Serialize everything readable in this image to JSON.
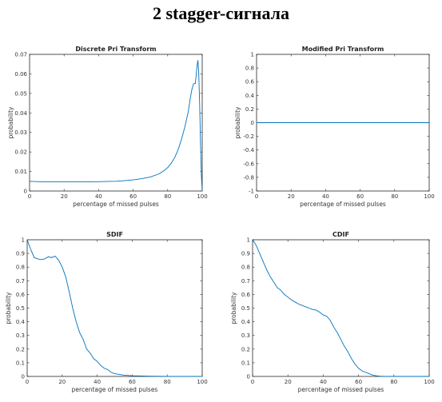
{
  "page": {
    "title": "2 stagger-сигнала"
  },
  "chart_data": [
    {
      "id": "dpt",
      "type": "line",
      "title": "Discrete Pri Transform",
      "xlabel": "percentage of missed pulses",
      "ylabel": "probability",
      "xlim": [
        0,
        100
      ],
      "ylim": [
        0,
        0.07
      ],
      "xticks": [
        0,
        20,
        40,
        60,
        80,
        100
      ],
      "yticks": [
        0,
        0.01,
        0.02,
        0.03,
        0.04,
        0.05,
        0.06,
        0.07
      ],
      "ytick_labels": [
        "0",
        "0.01",
        "0.02",
        "0.03",
        "0.04",
        "0.05",
        "0.06",
        "0.07"
      ],
      "grid": false,
      "color": "#0072bd",
      "x": [
        0,
        5,
        10,
        20,
        30,
        40,
        50,
        55,
        60,
        65,
        70,
        75,
        78,
        80,
        82,
        84,
        86,
        88,
        90,
        92,
        93,
        94,
        95,
        96,
        97,
        97.5,
        98,
        98.5,
        99,
        99.5,
        100
      ],
      "y": [
        0.005,
        0.0048,
        0.0047,
        0.0047,
        0.0047,
        0.0048,
        0.005,
        0.0053,
        0.0057,
        0.0063,
        0.0072,
        0.0088,
        0.0105,
        0.012,
        0.0142,
        0.017,
        0.021,
        0.0265,
        0.033,
        0.041,
        0.047,
        0.052,
        0.055,
        0.055,
        0.064,
        0.067,
        0.06,
        0.045,
        0.025,
        0.008,
        0.0
      ]
    },
    {
      "id": "mpt",
      "type": "line",
      "title": "Modified Pri Transform",
      "xlabel": "percentage of missed pulses",
      "ylabel": "probability",
      "xlim": [
        0,
        100
      ],
      "ylim": [
        -1,
        1
      ],
      "xticks": [
        0,
        20,
        40,
        60,
        80,
        100
      ],
      "yticks": [
        -1,
        -0.8,
        -0.6,
        -0.4,
        -0.2,
        0,
        0.2,
        0.4,
        0.6,
        0.8,
        1
      ],
      "ytick_labels": [
        "-1",
        "-0.8",
        "-0.6",
        "-0.4",
        "-0.2",
        "0",
        "0.2",
        "0.4",
        "0.6",
        "0.8",
        "1"
      ],
      "grid": false,
      "color": "#0072bd",
      "x": [
        0,
        100
      ],
      "y": [
        0,
        0
      ]
    },
    {
      "id": "sdif",
      "type": "line",
      "title": "SDIF",
      "xlabel": "percentage of missed pulses",
      "ylabel": "probability",
      "xlim": [
        0,
        100
      ],
      "ylim": [
        0,
        1
      ],
      "xticks": [
        0,
        20,
        40,
        60,
        80,
        100
      ],
      "yticks": [
        0,
        0.1,
        0.2,
        0.3,
        0.4,
        0.5,
        0.6,
        0.7,
        0.8,
        0.9,
        1
      ],
      "ytick_labels": [
        "0",
        "0.1",
        "0.2",
        "0.3",
        "0.4",
        "0.5",
        "0.6",
        "0.7",
        "0.8",
        "0.9",
        "1"
      ],
      "grid": false,
      "color": "#0072bd",
      "x": [
        0,
        2,
        4,
        6,
        8,
        10,
        12,
        14,
        16,
        18,
        20,
        22,
        24,
        26,
        28,
        30,
        32,
        34,
        36,
        38,
        40,
        42,
        44,
        46,
        48,
        50,
        55,
        60,
        70,
        80,
        100
      ],
      "y": [
        1.0,
        0.93,
        0.87,
        0.86,
        0.855,
        0.86,
        0.875,
        0.87,
        0.88,
        0.85,
        0.8,
        0.73,
        0.62,
        0.5,
        0.4,
        0.32,
        0.27,
        0.2,
        0.17,
        0.13,
        0.11,
        0.08,
        0.06,
        0.05,
        0.03,
        0.02,
        0.01,
        0.005,
        0.002,
        0.0,
        0.0
      ]
    },
    {
      "id": "cdif",
      "type": "line",
      "title": "CDIF",
      "xlabel": "percentage of missed pulses",
      "ylabel": "probability",
      "xlim": [
        0,
        100
      ],
      "ylim": [
        0,
        1
      ],
      "xticks": [
        0,
        20,
        40,
        60,
        80,
        100
      ],
      "yticks": [
        0,
        0.1,
        0.2,
        0.3,
        0.4,
        0.5,
        0.6,
        0.7,
        0.8,
        0.9,
        1
      ],
      "ytick_labels": [
        "0",
        "0.1",
        "0.2",
        "0.3",
        "0.4",
        "0.5",
        "0.6",
        "0.7",
        "0.8",
        "0.9",
        "1"
      ],
      "grid": false,
      "color": "#0072bd",
      "x": [
        0,
        2,
        4,
        6,
        8,
        10,
        12,
        14,
        16,
        18,
        20,
        22,
        24,
        26,
        28,
        30,
        32,
        34,
        36,
        38,
        40,
        42,
        44,
        46,
        48,
        50,
        52,
        54,
        56,
        58,
        60,
        62,
        64,
        66,
        68,
        70,
        72,
        75,
        80,
        100
      ],
      "y": [
        1.0,
        0.96,
        0.9,
        0.84,
        0.78,
        0.73,
        0.69,
        0.65,
        0.63,
        0.6,
        0.58,
        0.56,
        0.545,
        0.53,
        0.52,
        0.51,
        0.5,
        0.49,
        0.485,
        0.47,
        0.45,
        0.44,
        0.41,
        0.36,
        0.32,
        0.27,
        0.22,
        0.18,
        0.13,
        0.09,
        0.06,
        0.04,
        0.03,
        0.02,
        0.01,
        0.005,
        0.002,
        0.0,
        0.0,
        0.0
      ]
    }
  ]
}
